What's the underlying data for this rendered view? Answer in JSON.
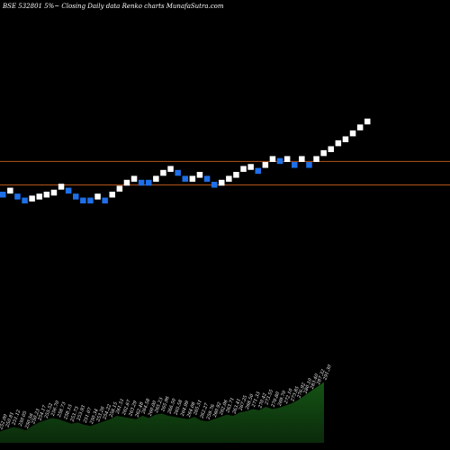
{
  "chart_title": "BSE 532801 5%~  Closing Daily data  Renko  charts MunafaSutra.com",
  "colors": {
    "background": "#000000",
    "up_brick": "#ffffff",
    "down_brick": "#1e6fe8",
    "level_line": "#b5561c",
    "volume_fill": "#0b2a0b",
    "volume_fill_top": "#145314"
  },
  "chart_data": {
    "type": "renko",
    "title": "BSE 532801 5%~  Closing Daily data  Renko  charts MunafaSutra.com",
    "reference_levels": [
      270.8,
      258.9
    ],
    "bricks": [
      {
        "value": 254,
        "dir": "down"
      },
      {
        "value": 256,
        "dir": "up"
      },
      {
        "value": 253,
        "dir": "down"
      },
      {
        "value": 251,
        "dir": "down"
      },
      {
        "value": 252,
        "dir": "up"
      },
      {
        "value": 253,
        "dir": "up"
      },
      {
        "value": 254,
        "dir": "up"
      },
      {
        "value": 255,
        "dir": "up"
      },
      {
        "value": 258,
        "dir": "up"
      },
      {
        "value": 256,
        "dir": "down"
      },
      {
        "value": 253,
        "dir": "down"
      },
      {
        "value": 251,
        "dir": "down"
      },
      {
        "value": 251,
        "dir": "down"
      },
      {
        "value": 253,
        "dir": "up"
      },
      {
        "value": 251,
        "dir": "down"
      },
      {
        "value": 254,
        "dir": "up"
      },
      {
        "value": 257,
        "dir": "up"
      },
      {
        "value": 260,
        "dir": "up"
      },
      {
        "value": 262,
        "dir": "up"
      },
      {
        "value": 260,
        "dir": "down"
      },
      {
        "value": 260,
        "dir": "down"
      },
      {
        "value": 262,
        "dir": "up"
      },
      {
        "value": 265,
        "dir": "up"
      },
      {
        "value": 267,
        "dir": "up"
      },
      {
        "value": 265,
        "dir": "down"
      },
      {
        "value": 262,
        "dir": "down"
      },
      {
        "value": 262,
        "dir": "up"
      },
      {
        "value": 264,
        "dir": "up"
      },
      {
        "value": 262,
        "dir": "down"
      },
      {
        "value": 259,
        "dir": "down"
      },
      {
        "value": 260,
        "dir": "up"
      },
      {
        "value": 262,
        "dir": "up"
      },
      {
        "value": 264,
        "dir": "up"
      },
      {
        "value": 267,
        "dir": "up"
      },
      {
        "value": 268,
        "dir": "up"
      },
      {
        "value": 266,
        "dir": "down"
      },
      {
        "value": 269,
        "dir": "up"
      },
      {
        "value": 272,
        "dir": "up"
      },
      {
        "value": 271,
        "dir": "down"
      },
      {
        "value": 272,
        "dir": "up"
      },
      {
        "value": 269,
        "dir": "down"
      },
      {
        "value": 272,
        "dir": "up"
      },
      {
        "value": 269,
        "dir": "down"
      },
      {
        "value": 272,
        "dir": "up"
      },
      {
        "value": 275,
        "dir": "up"
      },
      {
        "value": 277,
        "dir": "up"
      },
      {
        "value": 280,
        "dir": "up"
      },
      {
        "value": 282,
        "dir": "up"
      },
      {
        "value": 285,
        "dir": "up"
      },
      {
        "value": 288,
        "dir": "up"
      },
      {
        "value": 291,
        "dir": "up"
      }
    ],
    "volume_labels": [
      "252.00",
      "250.81",
      "251.12",
      "250.05",
      "250.56",
      "250.23",
      "254.17",
      "255.52",
      "256.70",
      "258.73",
      "258.15",
      "253.73",
      "253.93",
      "251.07",
      "250.34",
      "253.26",
      "254.22",
      "258.15",
      "261.51",
      "262.67",
      "263.29",
      "262.48",
      "264.58",
      "260.00",
      "265.23",
      "265.96",
      "266.50",
      "265.58",
      "264.99",
      "264.08",
      "265.51",
      "262.27",
      "259.76",
      "260.92",
      "262.06",
      "263.71",
      "263.41",
      "267.25",
      "268.50",
      "271.33",
      "270.42",
      "273.55",
      "270.80",
      "269.70",
      "272.10",
      "273.85",
      "276.92",
      "280.10",
      "283.40",
      "287.32",
      "291.30"
    ],
    "volume": [
      10,
      12,
      14,
      13,
      11,
      15,
      18,
      20,
      22,
      21,
      19,
      17,
      18,
      16,
      15,
      17,
      19,
      21,
      24,
      23,
      22,
      21,
      24,
      22,
      25,
      26,
      24,
      23,
      22,
      21,
      23,
      20,
      19,
      21,
      23,
      25,
      24,
      27,
      28,
      30,
      29,
      32,
      30,
      31,
      33,
      35,
      38,
      42,
      46,
      50,
      54
    ]
  }
}
